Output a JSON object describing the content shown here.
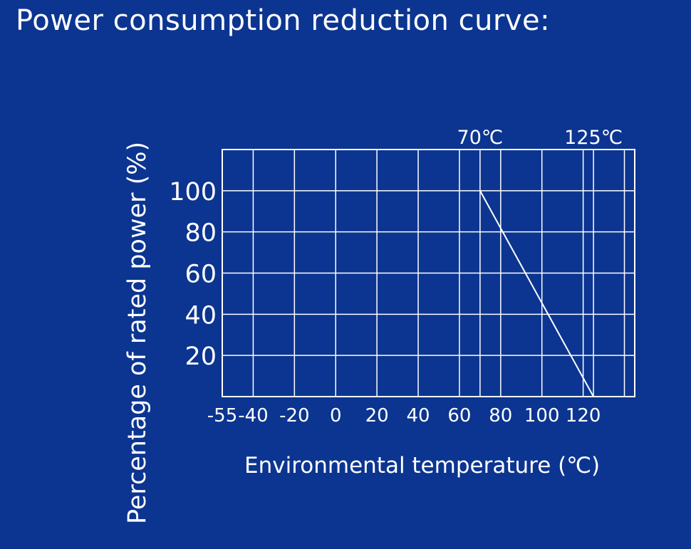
{
  "chart_data": {
    "type": "line",
    "title": "Power consumption reduction curve:",
    "xlabel": "Environmental temperature (℃)",
    "ylabel": "Percentage of rated power (%)",
    "x_ticks": [
      -55,
      -40,
      -20,
      0,
      20,
      40,
      60,
      80,
      100,
      120
    ],
    "y_ticks": [
      20,
      40,
      60,
      80,
      100
    ],
    "xlim": [
      -55,
      145
    ],
    "ylim": [
      0,
      120
    ],
    "grid": true,
    "reference_lines": [
      {
        "x": 70,
        "label": "70℃"
      },
      {
        "x": 125,
        "label": "125℃"
      }
    ],
    "series": [
      {
        "x": [
          70,
          125
        ],
        "y": [
          100,
          0
        ]
      }
    ],
    "colors": {
      "background": "#0c3591",
      "lines": "#ffffff"
    }
  }
}
